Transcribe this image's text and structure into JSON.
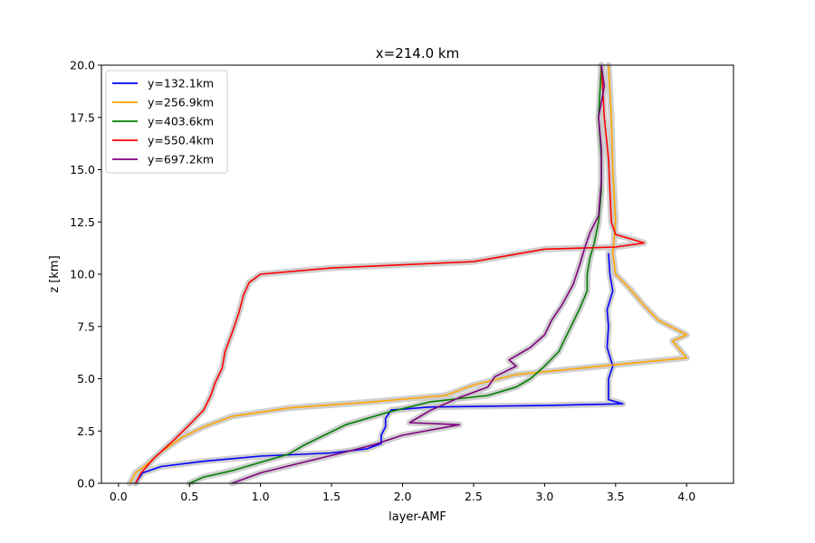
{
  "chart_data": {
    "type": "line",
    "title": "x=214.0 km",
    "xlabel": "layer-AMF",
    "ylabel": "z [km]",
    "xlim": [
      -0.12,
      4.33
    ],
    "ylim": [
      0,
      20
    ],
    "xticks": [
      0.0,
      0.5,
      1.0,
      1.5,
      2.0,
      2.5,
      3.0,
      3.5,
      4.0
    ],
    "xtick_labels": [
      "0.0",
      "0.5",
      "1.0",
      "1.5",
      "2.0",
      "2.5",
      "3.0",
      "3.5",
      "4.0"
    ],
    "yticks": [
      0.0,
      2.5,
      5.0,
      7.5,
      10.0,
      12.5,
      15.0,
      17.5,
      20.0
    ],
    "ytick_labels": [
      "0.0",
      "2.5",
      "5.0",
      "7.5",
      "10.0",
      "12.5",
      "15.0",
      "17.5",
      "20.0"
    ],
    "grid": false,
    "legend_position": "top-left",
    "band_color": "#c8c8c8",
    "series": [
      {
        "name": "y=132.1km",
        "color": "#0000ff",
        "points": [
          [
            0.12,
            0
          ],
          [
            0.17,
            0.5
          ],
          [
            0.3,
            0.8
          ],
          [
            0.6,
            1.05
          ],
          [
            1.0,
            1.3
          ],
          [
            1.5,
            1.45
          ],
          [
            1.75,
            1.65
          ],
          [
            1.85,
            1.9
          ],
          [
            1.85,
            2.3
          ],
          [
            1.88,
            2.7
          ],
          [
            1.88,
            3.1
          ],
          [
            1.92,
            3.5
          ],
          [
            2.2,
            3.65
          ],
          [
            3.0,
            3.72
          ],
          [
            3.55,
            3.8
          ],
          [
            3.45,
            4.0
          ],
          [
            3.45,
            5.0
          ],
          [
            3.48,
            5.6
          ],
          [
            3.44,
            6.5
          ],
          [
            3.45,
            7.5
          ],
          [
            3.44,
            8.3
          ],
          [
            3.48,
            9.2
          ],
          [
            3.46,
            10.0
          ],
          [
            3.45,
            11.0
          ]
        ]
      },
      {
        "name": "y=256.9km",
        "color": "#ffa500",
        "points": [
          [
            0.08,
            0
          ],
          [
            0.12,
            0.5
          ],
          [
            0.2,
            0.9
          ],
          [
            0.3,
            1.5
          ],
          [
            0.45,
            2.2
          ],
          [
            0.6,
            2.7
          ],
          [
            0.8,
            3.2
          ],
          [
            1.2,
            3.6
          ],
          [
            1.8,
            3.9
          ],
          [
            2.3,
            4.2
          ],
          [
            2.5,
            4.7
          ],
          [
            2.8,
            5.2
          ],
          [
            3.4,
            5.6
          ],
          [
            4.0,
            6.0
          ],
          [
            3.95,
            6.4
          ],
          [
            3.9,
            6.8
          ],
          [
            4.0,
            7.1
          ],
          [
            3.8,
            7.8
          ],
          [
            3.7,
            8.5
          ],
          [
            3.6,
            9.3
          ],
          [
            3.5,
            10.0
          ],
          [
            3.48,
            11.0
          ],
          [
            3.5,
            12.5
          ],
          [
            3.48,
            15.0
          ],
          [
            3.47,
            17.5
          ],
          [
            3.45,
            20.0
          ]
        ]
      },
      {
        "name": "y=403.6km",
        "color": "#008000",
        "points": [
          [
            0.5,
            0
          ],
          [
            0.6,
            0.3
          ],
          [
            0.8,
            0.6
          ],
          [
            1.0,
            1.0
          ],
          [
            1.2,
            1.4
          ],
          [
            1.3,
            1.8
          ],
          [
            1.45,
            2.3
          ],
          [
            1.6,
            2.8
          ],
          [
            1.9,
            3.4
          ],
          [
            2.2,
            3.9
          ],
          [
            2.6,
            4.2
          ],
          [
            2.8,
            4.6
          ],
          [
            2.9,
            5.0
          ],
          [
            3.0,
            5.6
          ],
          [
            3.1,
            6.3
          ],
          [
            3.15,
            7.0
          ],
          [
            3.2,
            7.7
          ],
          [
            3.25,
            8.4
          ],
          [
            3.3,
            9.2
          ],
          [
            3.3,
            10.0
          ],
          [
            3.32,
            10.8
          ],
          [
            3.35,
            11.5
          ],
          [
            3.38,
            12.5
          ],
          [
            3.4,
            14.0
          ],
          [
            3.4,
            15.5
          ],
          [
            3.38,
            17.5
          ],
          [
            3.4,
            20.0
          ]
        ]
      },
      {
        "name": "y=550.4km",
        "color": "#ff0000",
        "points": [
          [
            0.12,
            0
          ],
          [
            0.16,
            0.5
          ],
          [
            0.25,
            1.2
          ],
          [
            0.38,
            2.0
          ],
          [
            0.5,
            2.8
          ],
          [
            0.6,
            3.5
          ],
          [
            0.65,
            4.2
          ],
          [
            0.68,
            4.8
          ],
          [
            0.73,
            5.5
          ],
          [
            0.75,
            6.3
          ],
          [
            0.8,
            7.2
          ],
          [
            0.85,
            8.2
          ],
          [
            0.88,
            9.0
          ],
          [
            0.92,
            9.6
          ],
          [
            1.0,
            10.0
          ],
          [
            1.5,
            10.3
          ],
          [
            2.5,
            10.6
          ],
          [
            3.0,
            11.2
          ],
          [
            3.5,
            11.3
          ],
          [
            3.7,
            11.5
          ],
          [
            3.5,
            11.9
          ],
          [
            3.47,
            12.5
          ],
          [
            3.46,
            14.0
          ],
          [
            3.45,
            15.5
          ],
          [
            3.42,
            17.5
          ],
          [
            3.4,
            20.0
          ]
        ]
      },
      {
        "name": "y=697.2km",
        "color": "#800080",
        "points": [
          [
            0.8,
            0
          ],
          [
            1.0,
            0.5
          ],
          [
            1.3,
            1.0
          ],
          [
            1.6,
            1.5
          ],
          [
            1.8,
            1.85
          ],
          [
            2.0,
            2.3
          ],
          [
            2.4,
            2.8
          ],
          [
            2.05,
            2.9
          ],
          [
            2.2,
            3.5
          ],
          [
            2.4,
            4.1
          ],
          [
            2.6,
            4.6
          ],
          [
            2.65,
            5.1
          ],
          [
            2.8,
            5.6
          ],
          [
            2.75,
            5.9
          ],
          [
            2.9,
            6.5
          ],
          [
            3.0,
            7.1
          ],
          [
            3.05,
            7.8
          ],
          [
            3.12,
            8.5
          ],
          [
            3.2,
            9.5
          ],
          [
            3.25,
            10.5
          ],
          [
            3.28,
            11.2
          ],
          [
            3.32,
            12.0
          ],
          [
            3.38,
            12.8
          ],
          [
            3.4,
            14.5
          ],
          [
            3.4,
            16.0
          ],
          [
            3.38,
            17.5
          ],
          [
            3.42,
            19.0
          ],
          [
            3.4,
            20.0
          ]
        ]
      }
    ]
  }
}
